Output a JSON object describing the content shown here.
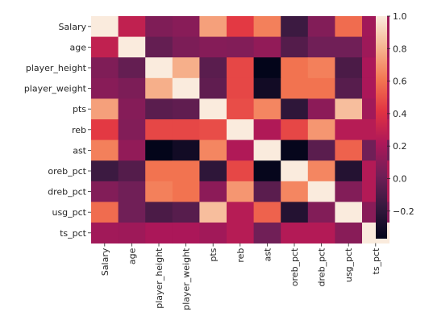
{
  "chart_data": {
    "type": "heatmap",
    "title": "",
    "xlabel": "",
    "ylabel": "",
    "labels": [
      "Salary",
      "age",
      "player_height",
      "player_weight",
      "pts",
      "reb",
      "ast",
      "oreb_pct",
      "dreb_pct",
      "usg_pct",
      "ts_pct"
    ],
    "matrix": [
      [
        1.0,
        0.29,
        0.07,
        0.1,
        0.74,
        0.43,
        0.64,
        -0.15,
        0.08,
        0.58,
        0.18
      ],
      [
        0.29,
        1.0,
        -0.02,
        0.06,
        0.09,
        0.08,
        0.13,
        -0.07,
        0.02,
        0.02,
        0.17
      ],
      [
        0.07,
        -0.02,
        1.0,
        0.79,
        -0.05,
        0.47,
        -0.37,
        0.6,
        0.64,
        -0.1,
        0.21
      ],
      [
        0.1,
        0.06,
        0.79,
        1.0,
        -0.03,
        0.47,
        -0.31,
        0.6,
        0.6,
        -0.06,
        0.21
      ],
      [
        0.74,
        0.09,
        -0.05,
        -0.03,
        1.0,
        0.49,
        0.66,
        -0.2,
        0.11,
        0.84,
        0.18
      ],
      [
        0.43,
        0.08,
        0.47,
        0.47,
        0.49,
        1.0,
        0.23,
        0.47,
        0.71,
        0.25,
        0.25
      ],
      [
        0.64,
        0.13,
        -0.37,
        -0.31,
        0.66,
        0.23,
        1.0,
        -0.36,
        -0.05,
        0.55,
        0.02
      ],
      [
        -0.15,
        -0.07,
        0.6,
        0.6,
        -0.2,
        0.47,
        -0.36,
        1.0,
        0.66,
        -0.24,
        0.24
      ],
      [
        0.08,
        0.02,
        0.64,
        0.6,
        0.11,
        0.71,
        -0.05,
        0.66,
        1.0,
        0.08,
        0.24
      ],
      [
        0.58,
        0.02,
        -0.1,
        -0.06,
        0.84,
        0.25,
        0.55,
        -0.24,
        0.08,
        1.0,
        0.1
      ],
      [
        0.18,
        0.17,
        0.21,
        0.21,
        0.18,
        0.25,
        0.02,
        0.24,
        0.24,
        0.1,
        1.0
      ]
    ],
    "colorbar": {
      "colormap": "rocket",
      "vmin": -0.37,
      "vmax": 1.0,
      "ticks": [
        -0.2,
        0.0,
        0.2,
        0.4,
        0.6,
        0.8,
        1.0
      ],
      "tick_labels": [
        "−0.2",
        "0.0",
        "0.2",
        "0.4",
        "0.6",
        "0.8",
        "1.0"
      ]
    },
    "colormap_stops": [
      "#03051a",
      "#35193e",
      "#701f57",
      "#ad1759",
      "#e13342",
      "#f37651",
      "#f6b48f",
      "#faebdd"
    ],
    "grid": false,
    "legend": "colorbar-right"
  }
}
